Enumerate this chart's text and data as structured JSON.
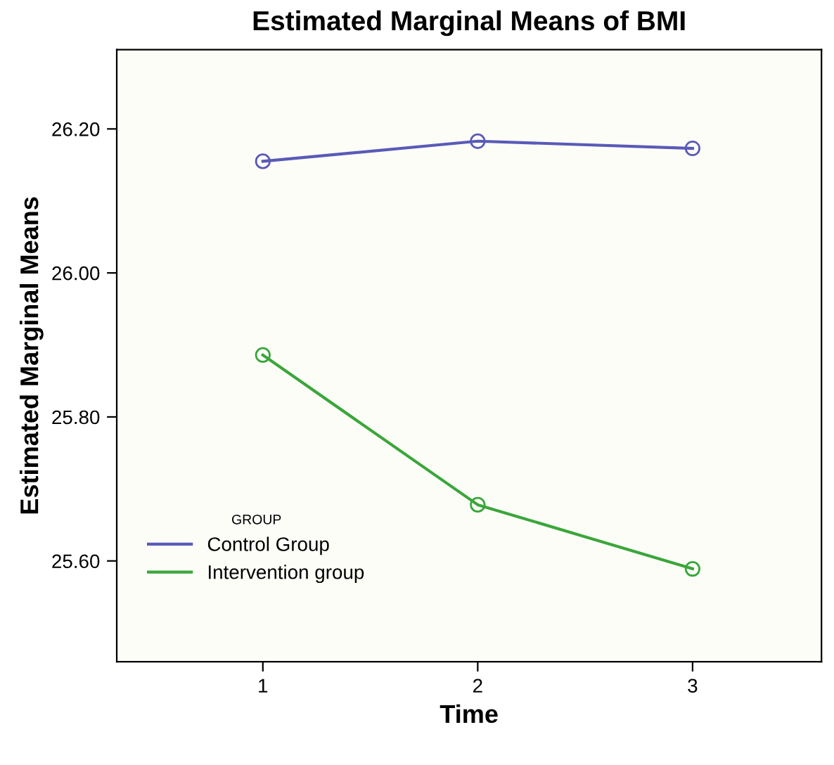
{
  "chart_data": {
    "type": "line",
    "title": "Estimated Marginal Means of BMI",
    "xlabel": "Time",
    "ylabel": "Estimated Marginal Means",
    "x": [
      1,
      2,
      3
    ],
    "series": [
      {
        "name": "Control Group",
        "color": "#5a5ab8",
        "values": [
          26.155,
          26.183,
          26.173
        ]
      },
      {
        "name": "Intervention group",
        "color": "#3aa63a",
        "values": [
          25.886,
          25.678,
          25.589
        ]
      }
    ],
    "legend_title": "GROUP",
    "legend": "bottom left",
    "marker": "circle",
    "line_style": "solid",
    "grid": false,
    "xlim": [
      0.32,
      3.6
    ],
    "xticks": [
      1,
      2,
      3
    ],
    "ylim": [
      25.46,
      26.31
    ],
    "yticks": [
      {
        "value": 25.6,
        "label": "25.60"
      },
      {
        "value": 25.8,
        "label": "25.80"
      },
      {
        "value": 26.0,
        "label": "26.00"
      },
      {
        "value": 26.2,
        "label": "26.20"
      }
    ]
  }
}
